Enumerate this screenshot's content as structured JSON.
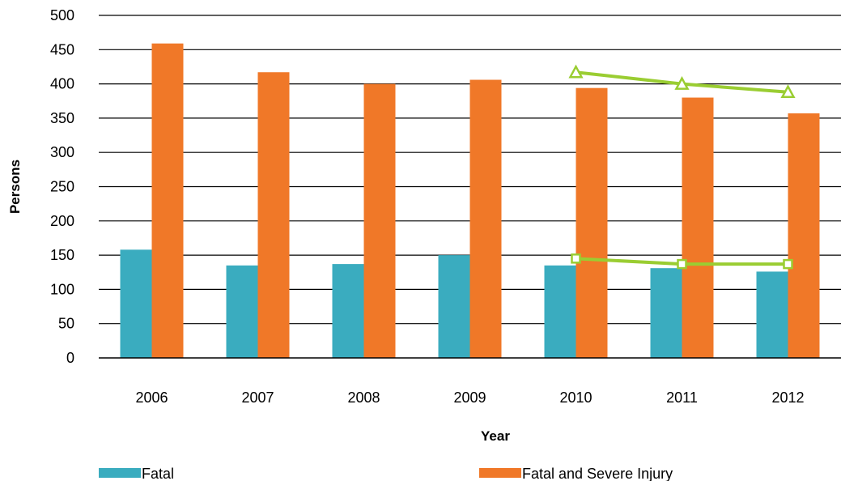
{
  "chart_data": {
    "type": "bar",
    "title": "",
    "xlabel": "Year",
    "ylabel": "Persons",
    "ylim": [
      0,
      500
    ],
    "yticks": [
      0,
      50,
      100,
      150,
      200,
      250,
      300,
      350,
      400,
      450,
      500
    ],
    "categories": [
      "2006",
      "2007",
      "2008",
      "2009",
      "2010",
      "2011",
      "2012"
    ],
    "grid": "horizontal",
    "legend_position": "bottom",
    "series": [
      {
        "name": "Fatal",
        "type": "bar",
        "color": "#3aacbf",
        "values": [
          158,
          135,
          137,
          150,
          135,
          131,
          126
        ]
      },
      {
        "name": "Fatal and Severe Injury",
        "type": "bar",
        "color": "#f07828",
        "values": [
          459,
          417,
          400,
          406,
          394,
          380,
          357
        ]
      },
      {
        "type": "line",
        "marker": "square",
        "color": "#9acd32",
        "x": [
          "2010",
          "2011",
          "2012"
        ],
        "values": [
          145,
          137,
          137
        ]
      },
      {
        "type": "line",
        "marker": "triangle",
        "color": "#9acd32",
        "x": [
          "2010",
          "2011",
          "2012"
        ],
        "values": [
          417,
          400,
          388
        ]
      }
    ]
  }
}
